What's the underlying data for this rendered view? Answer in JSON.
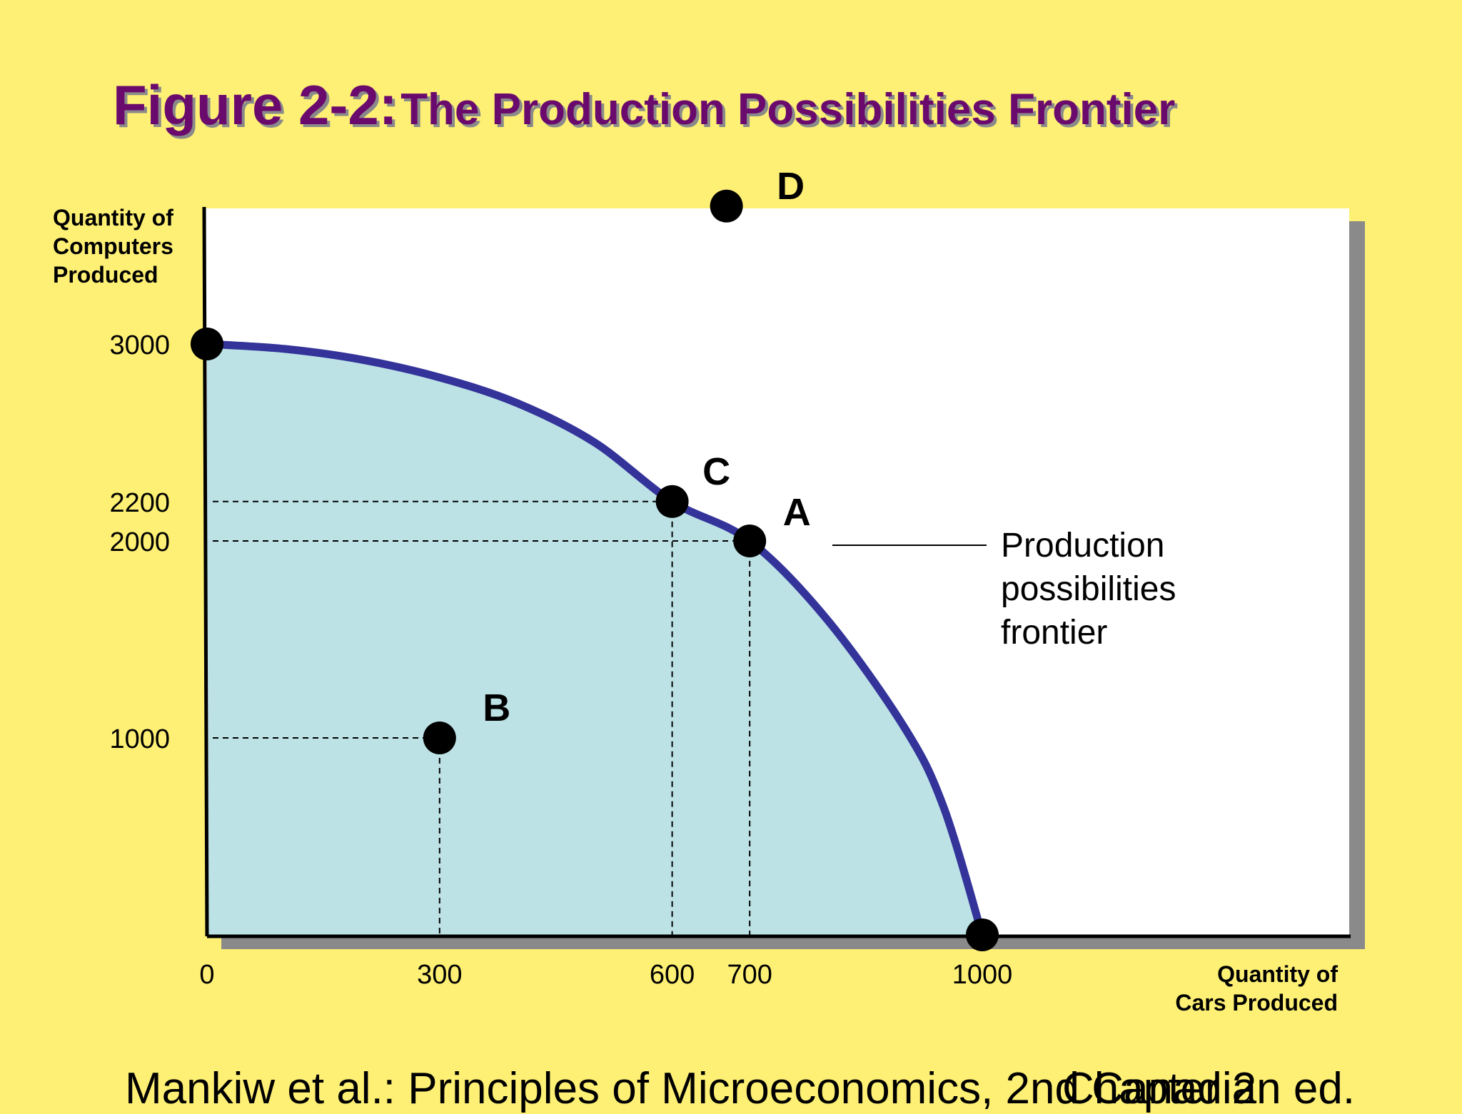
{
  "title": {
    "figure": "Figure 2-2:",
    "name": "The Production Possibilities Frontier"
  },
  "footer": {
    "left": "Mankiw et al.: Principles of Microeconomics, 2nd Canadian ed.",
    "right": "Chapter 2"
  },
  "colors": {
    "background": "#fef075",
    "title": "#6b0a6d",
    "frontier": "#33339a",
    "feasible_fill": "#bde2e6",
    "plot_area": "#ffffff",
    "points": "#000000"
  },
  "chart_data": {
    "type": "line",
    "title": "The Production Possibilities Frontier",
    "xlabel": [
      "Quantity of",
      "Cars Produced"
    ],
    "ylabel": [
      "Quantity of",
      "Computers",
      "Produced"
    ],
    "xlim": [
      0,
      1000
    ],
    "ylim": [
      0,
      3000
    ],
    "x_ticks": [
      {
        "value": 0,
        "label": "0"
      },
      {
        "value": 300,
        "label": "300"
      },
      {
        "value": 600,
        "label": "600"
      },
      {
        "value": 700,
        "label": "700"
      },
      {
        "value": 1000,
        "label": "1000"
      }
    ],
    "y_ticks": [
      {
        "value": 1000,
        "label": "1000"
      },
      {
        "value": 2000,
        "label": "2000"
      },
      {
        "value": 2200,
        "label": "2200"
      },
      {
        "value": 3000,
        "label": "3000"
      }
    ],
    "series": [
      {
        "name": "Production possibilities frontier",
        "x": [
          0,
          100,
          200,
          300,
          400,
          500,
          600,
          700,
          800,
          900,
          950,
          1000
        ],
        "y": [
          3000,
          2975,
          2920,
          2830,
          2700,
          2500,
          2200,
          2000,
          1600,
          1050,
          650,
          0
        ]
      }
    ],
    "points": [
      {
        "label": "A",
        "x": 700,
        "y": 2000,
        "guides": true
      },
      {
        "label": "B",
        "x": 300,
        "y": 1000,
        "guides": true
      },
      {
        "label": "C",
        "x": 600,
        "y": 2200,
        "guides": true
      },
      {
        "label": "D",
        "x": 670,
        "y": 3700,
        "guides": false
      },
      {
        "label": "",
        "x": 0,
        "y": 3000,
        "guides": false
      },
      {
        "label": "",
        "x": 1000,
        "y": 0,
        "guides": false
      }
    ],
    "annotation": [
      "Production",
      "possibilities",
      "frontier"
    ],
    "grid": false,
    "shaded_feasible_region": true
  }
}
